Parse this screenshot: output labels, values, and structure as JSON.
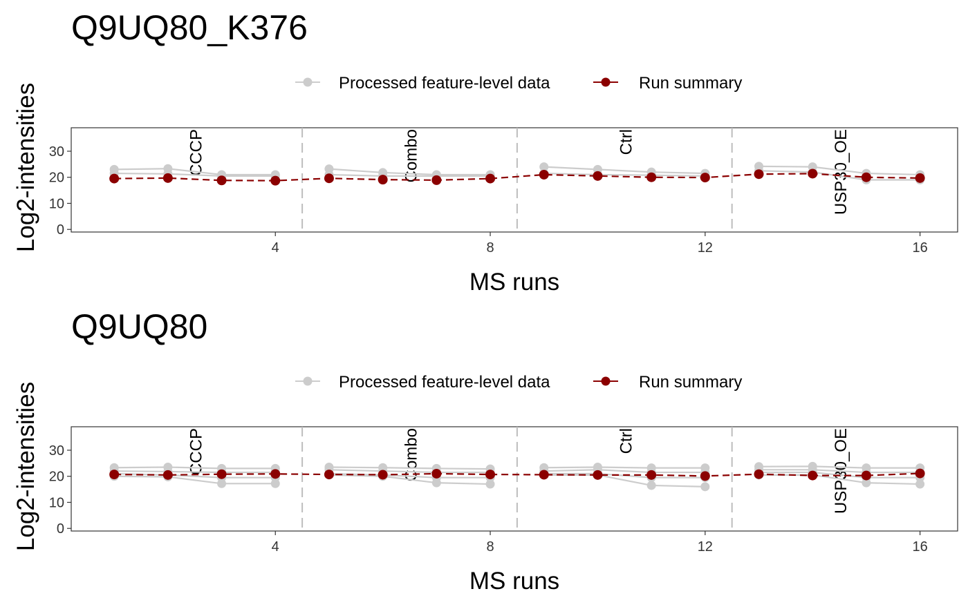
{
  "chart_data": [
    {
      "type": "line",
      "title": "Q9UQ80_K376",
      "xlabel": "MS runs",
      "ylabel": "Log2-intensities",
      "xlim": [
        0.2,
        16.7
      ],
      "ylim": [
        -1,
        39
      ],
      "x_ticks": [
        4,
        8,
        12,
        16
      ],
      "y_ticks": [
        0,
        10,
        20,
        30
      ],
      "grid": false,
      "legend_position": "top",
      "legend": [
        {
          "label": "Processed feature-level data",
          "color": "#cccccc"
        },
        {
          "label": "Run summary",
          "color": "#8b0000"
        }
      ],
      "group_separators": [
        4.5,
        8.5,
        12.5
      ],
      "group_labels": [
        {
          "label": "CCCP",
          "x": 2.5
        },
        {
          "label": "Combo",
          "x": 6.5
        },
        {
          "label": "Ctrl",
          "x": 10.5
        },
        {
          "label": "USP30_OE",
          "x": 14.5
        }
      ],
      "x": [
        1,
        2,
        3,
        4,
        5,
        6,
        7,
        8,
        9,
        10,
        11,
        12,
        13,
        14,
        15,
        16
      ],
      "features": [
        {
          "x": [
            1,
            2,
            3,
            4
          ],
          "values": [
            23,
            23.3,
            21,
            21
          ]
        },
        {
          "x": [
            1,
            2,
            3,
            4
          ],
          "values": [
            21.5,
            21.3,
            20.5,
            20.5
          ]
        },
        {
          "x": [
            5,
            6,
            7,
            8
          ],
          "values": [
            23.2,
            21.8,
            21,
            21
          ]
        },
        {
          "x": [
            5,
            6,
            7,
            8
          ],
          "values": [
            21,
            20.5,
            20.5,
            20.5
          ]
        },
        {
          "x": [
            9,
            10,
            11,
            12
          ],
          "values": [
            24,
            23,
            22,
            21.5
          ]
        },
        {
          "x": [
            9,
            10,
            11,
            12
          ],
          "values": [
            21.5,
            21,
            20.8,
            20.5
          ]
        },
        {
          "x": [
            13,
            14,
            15,
            16
          ],
          "values": [
            24.2,
            24,
            21.5,
            21
          ]
        },
        {
          "x": [
            13,
            14,
            15,
            16
          ],
          "values": [
            22.5,
            22,
            19,
            19
          ]
        }
      ],
      "series": [
        {
          "name": "Run summary",
          "values": [
            19.5,
            19.7,
            18.8,
            18.7,
            19.6,
            19.1,
            18.9,
            19.5,
            21,
            20.5,
            20,
            19.9,
            21.2,
            21.4,
            20,
            19.7
          ]
        }
      ]
    },
    {
      "type": "line",
      "title": "Q9UQ80",
      "xlabel": "MS runs",
      "ylabel": "Log2-intensities",
      "xlim": [
        0.2,
        16.7
      ],
      "ylim": [
        -1,
        39
      ],
      "x_ticks": [
        4,
        8,
        12,
        16
      ],
      "y_ticks": [
        0,
        10,
        20,
        30
      ],
      "grid": false,
      "legend_position": "top",
      "legend": [
        {
          "label": "Processed feature-level data",
          "color": "#cccccc"
        },
        {
          "label": "Run summary",
          "color": "#8b0000"
        }
      ],
      "group_separators": [
        4.5,
        8.5,
        12.5
      ],
      "group_labels": [
        {
          "label": "CCCP",
          "x": 2.5
        },
        {
          "label": "Combo",
          "x": 6.5
        },
        {
          "label": "Ctrl",
          "x": 10.5
        },
        {
          "label": "USP30_OE",
          "x": 14.5
        }
      ],
      "x": [
        1,
        2,
        3,
        4,
        5,
        6,
        7,
        8,
        9,
        10,
        11,
        12,
        13,
        14,
        15,
        16
      ],
      "features": [
        {
          "x": [
            1,
            2,
            3,
            4
          ],
          "values": [
            23.3,
            23.5,
            23,
            23
          ]
        },
        {
          "x": [
            1,
            2,
            3,
            4
          ],
          "values": [
            22,
            21.8,
            21.5,
            21.5
          ]
        },
        {
          "x": [
            1,
            2,
            3,
            4
          ],
          "values": [
            21,
            20.5,
            19.5,
            19.5
          ]
        },
        {
          "x": [
            1,
            2,
            3,
            4
          ],
          "values": [
            20,
            19.8,
            17.2,
            17.2
          ]
        },
        {
          "x": [
            5,
            6,
            7,
            8
          ],
          "values": [
            23.5,
            23.3,
            23,
            22.8
          ]
        },
        {
          "x": [
            5,
            6,
            7,
            8
          ],
          "values": [
            22.5,
            22,
            21.5,
            21.5
          ]
        },
        {
          "x": [
            5,
            6,
            7,
            8
          ],
          "values": [
            21,
            20.5,
            19.5,
            19.5
          ]
        },
        {
          "x": [
            5,
            6,
            7,
            8
          ],
          "values": [
            20.5,
            20,
            17.5,
            17
          ]
        },
        {
          "x": [
            9,
            10,
            11,
            12
          ],
          "values": [
            23.3,
            23.5,
            23.2,
            23.2
          ]
        },
        {
          "x": [
            9,
            10,
            11,
            12
          ],
          "values": [
            22,
            22.5,
            21.5,
            21.5
          ]
        },
        {
          "x": [
            9,
            10,
            11,
            12
          ],
          "values": [
            21,
            21,
            19.5,
            19.5
          ]
        },
        {
          "x": [
            9,
            10,
            11,
            12
          ],
          "values": [
            20.5,
            20.5,
            16.5,
            16
          ]
        },
        {
          "x": [
            13,
            14,
            15,
            16
          ],
          "values": [
            23.7,
            23.8,
            23.2,
            23.2
          ]
        },
        {
          "x": [
            13,
            14,
            15,
            16
          ],
          "values": [
            22.5,
            22.5,
            21.5,
            21.5
          ]
        },
        {
          "x": [
            13,
            14,
            15,
            16
          ],
          "values": [
            21.5,
            21.5,
            19.5,
            19.5
          ]
        },
        {
          "x": [
            13,
            14,
            15,
            16
          ],
          "values": [
            20.5,
            20.5,
            17.5,
            17
          ]
        }
      ],
      "series": [
        {
          "name": "Run summary",
          "values": [
            20.7,
            20.5,
            20.8,
            20.9,
            20.7,
            20.6,
            21,
            20.7,
            20.6,
            20.5,
            20.5,
            20.1,
            20.8,
            20.3,
            20.3,
            21.1
          ]
        }
      ]
    }
  ]
}
